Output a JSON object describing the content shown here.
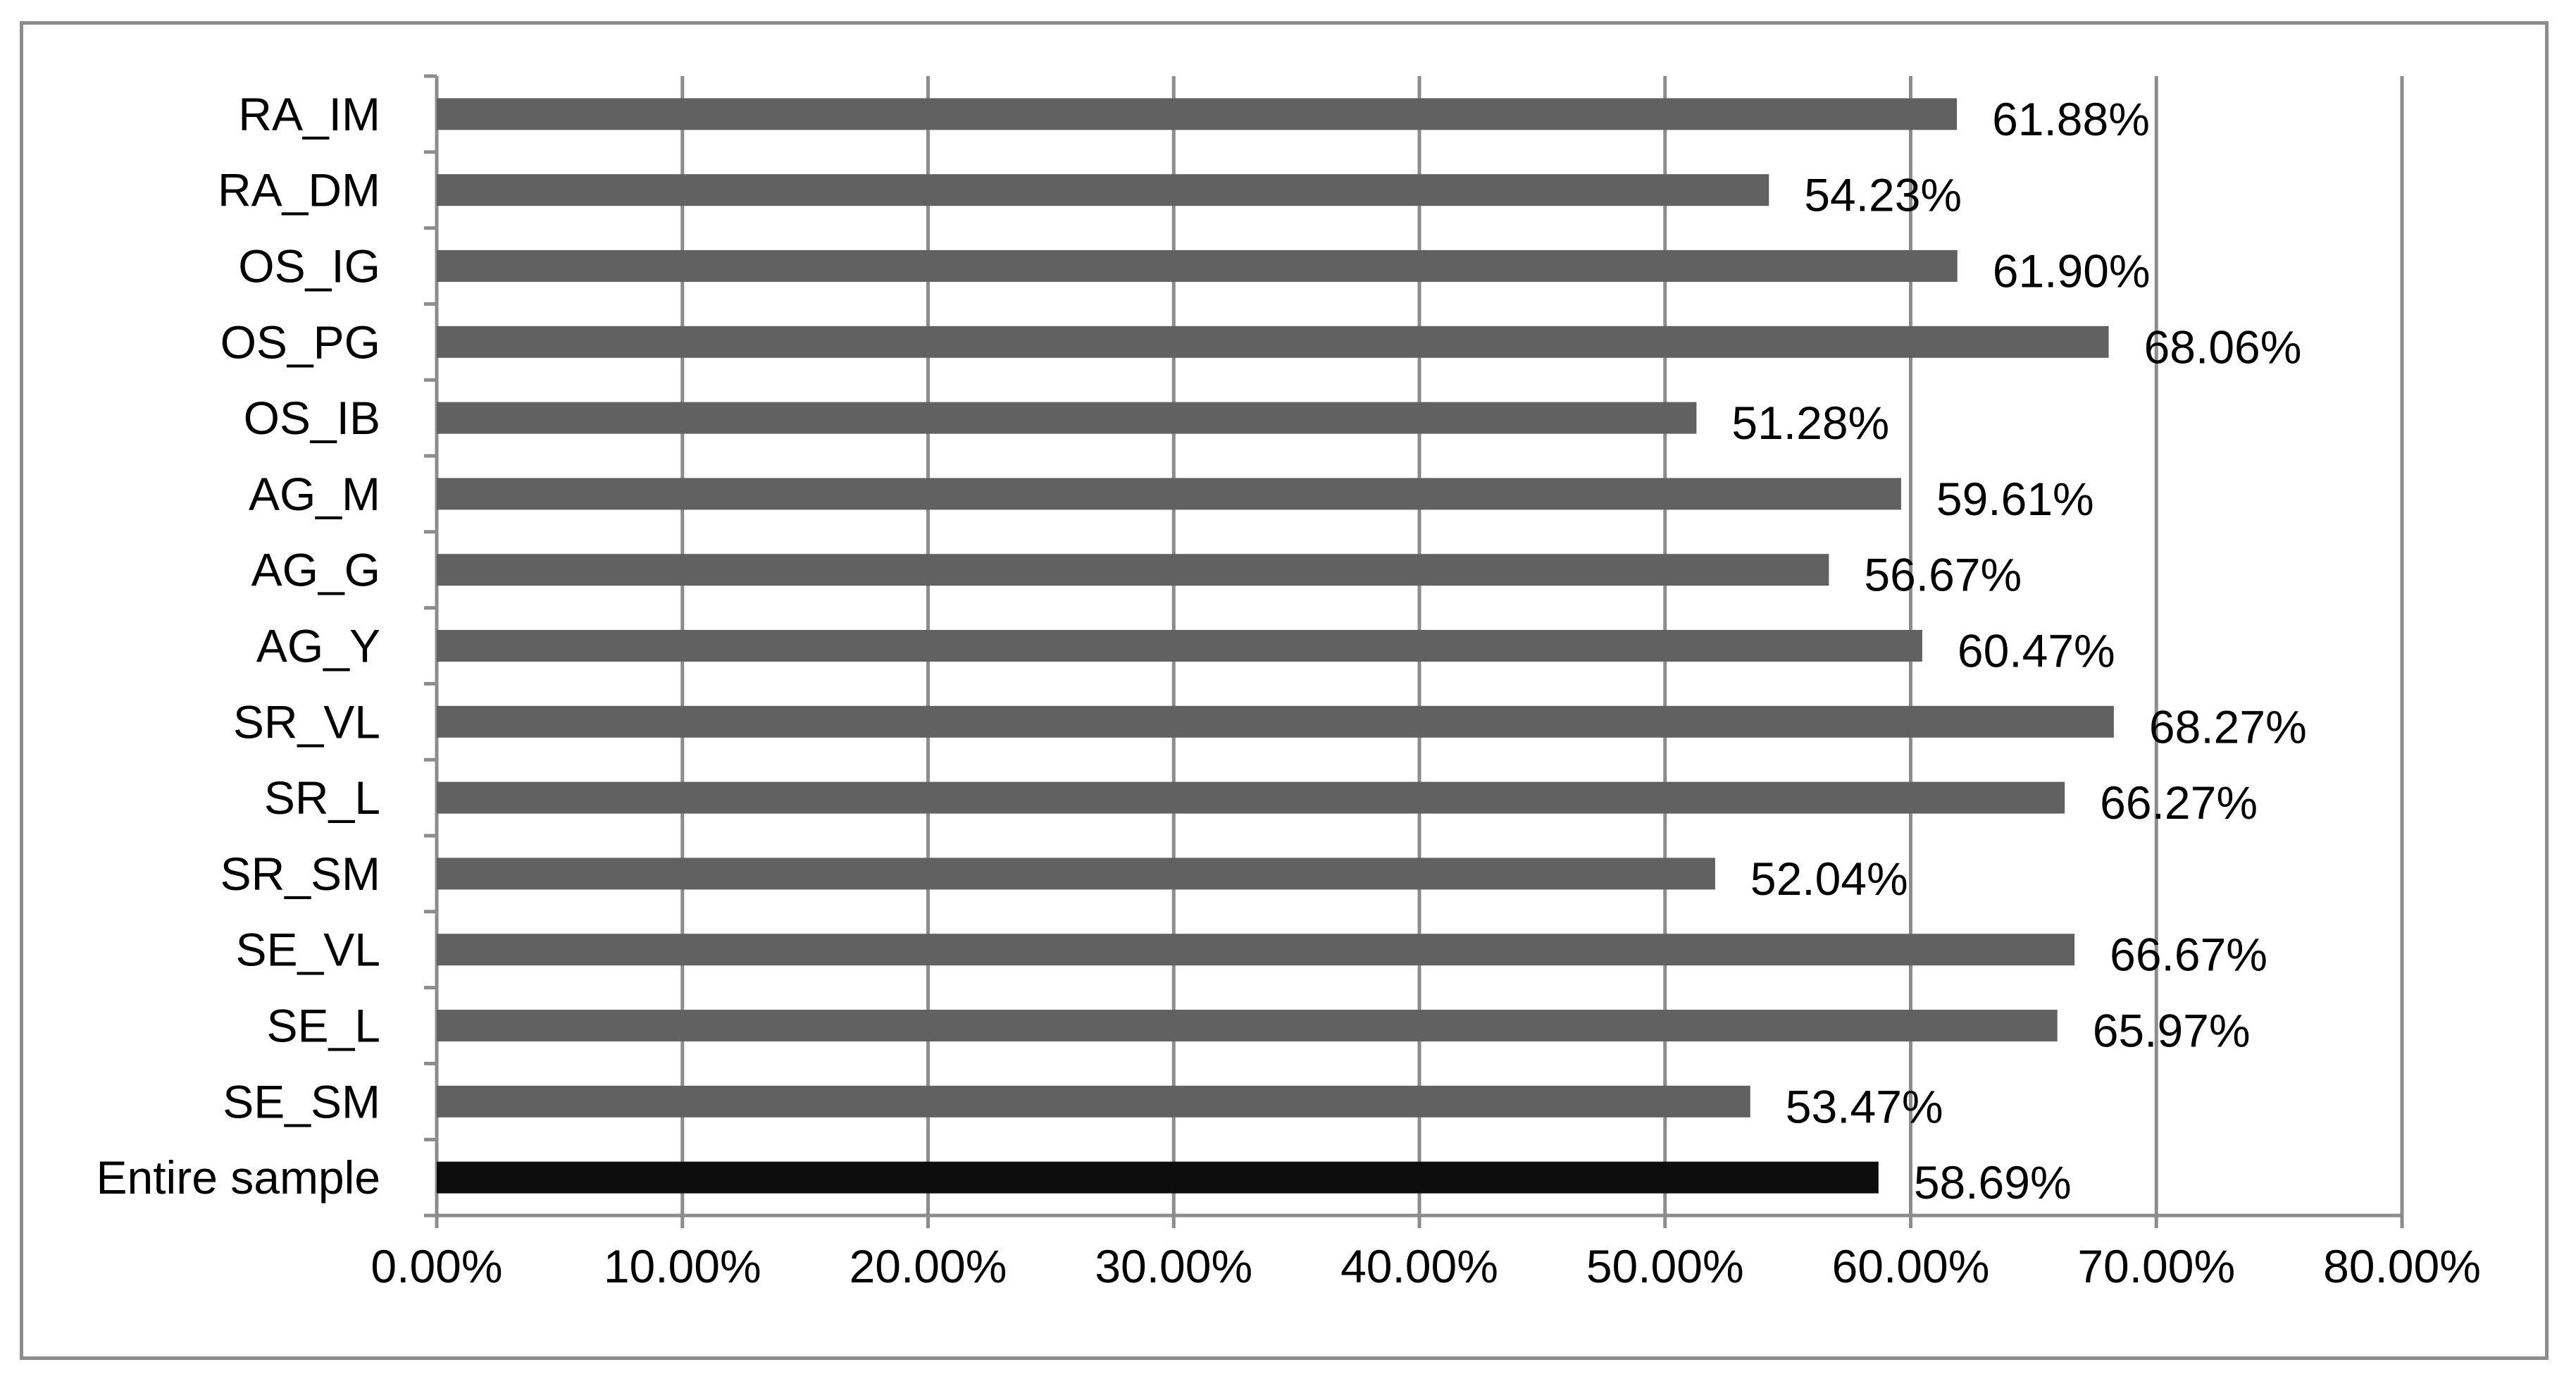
{
  "chart_data": {
    "type": "bar",
    "orientation": "horizontal",
    "categories": [
      "RA_IM",
      "RA_DM",
      "OS_IG",
      "OS_PG",
      "OS_IB",
      "AG_M",
      "AG_G",
      "AG_Y",
      "SR_VL",
      "SR_L",
      "SR_SM",
      "SE_VL",
      "SE_L",
      "SE_SM",
      "Entire sample"
    ],
    "values": [
      61.88,
      54.23,
      61.9,
      68.06,
      51.28,
      59.61,
      56.67,
      60.47,
      68.27,
      66.27,
      52.04,
      66.67,
      65.97,
      53.47,
      58.69
    ],
    "value_labels": [
      "61.88%",
      "54.23%",
      "61.90%",
      "68.06%",
      "51.28%",
      "59.61%",
      "56.67%",
      "60.47%",
      "68.27%",
      "66.27%",
      "52.04%",
      "66.67%",
      "65.97%",
      "53.47%",
      "58.69%"
    ],
    "xlim": [
      0,
      80
    ],
    "x_ticks": [
      "0.00%",
      "10.00%",
      "20.00%",
      "30.00%",
      "40.00%",
      "50.00%",
      "60.00%",
      "70.00%",
      "80.00%"
    ],
    "grid": "vertical",
    "legend": "none",
    "title": "",
    "xlabel": "",
    "ylabel": "",
    "colors": {
      "bar": "#616161",
      "highlight_bar": "#0d0d0d",
      "grid": "#8c8c8c",
      "axis": "#8c8c8c",
      "frame": "#8c8c8c"
    },
    "highlight_category": "Entire sample"
  }
}
